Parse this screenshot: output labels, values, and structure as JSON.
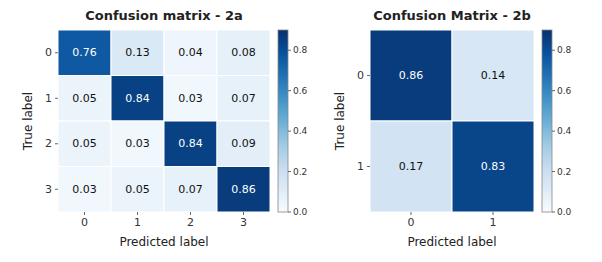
{
  "chart_data": [
    {
      "type": "heatmap",
      "title": "Confusion matrix - 2a",
      "x_label": "Predicted label",
      "y_label": "True label",
      "x": [
        0,
        1,
        2,
        3
      ],
      "y": [
        0,
        1,
        2,
        3
      ],
      "values": [
        [
          0.76,
          0.13,
          0.04,
          0.08
        ],
        [
          0.05,
          0.84,
          0.03,
          0.07
        ],
        [
          0.05,
          0.03,
          0.84,
          0.09
        ],
        [
          0.03,
          0.05,
          0.07,
          0.86
        ]
      ],
      "color": "Blues",
      "data_labels": true,
      "colorbar_range": [
        0.0,
        0.9
      ],
      "colorbar_ticks": [
        {
          "value": 0.0,
          "label": "0.0"
        },
        0.2,
        0.4,
        0.6,
        0.8
      ]
    },
    {
      "type": "heatmap",
      "title": "Confusion Matrix - 2b",
      "x_label": "Predicted label",
      "y_label": "True label",
      "x": [
        0,
        1
      ],
      "y": [
        0,
        1
      ],
      "values": [
        [
          0.86,
          0.14
        ],
        [
          0.17,
          0.83
        ]
      ],
      "color": "Blues",
      "data_labels": true,
      "colorbar_range": [
        0.0,
        0.9
      ],
      "colorbar_ticks": [
        {
          "value": 0.0,
          "label": "0.0"
        },
        0.2,
        0.4,
        0.6,
        0.8
      ]
    }
  ]
}
